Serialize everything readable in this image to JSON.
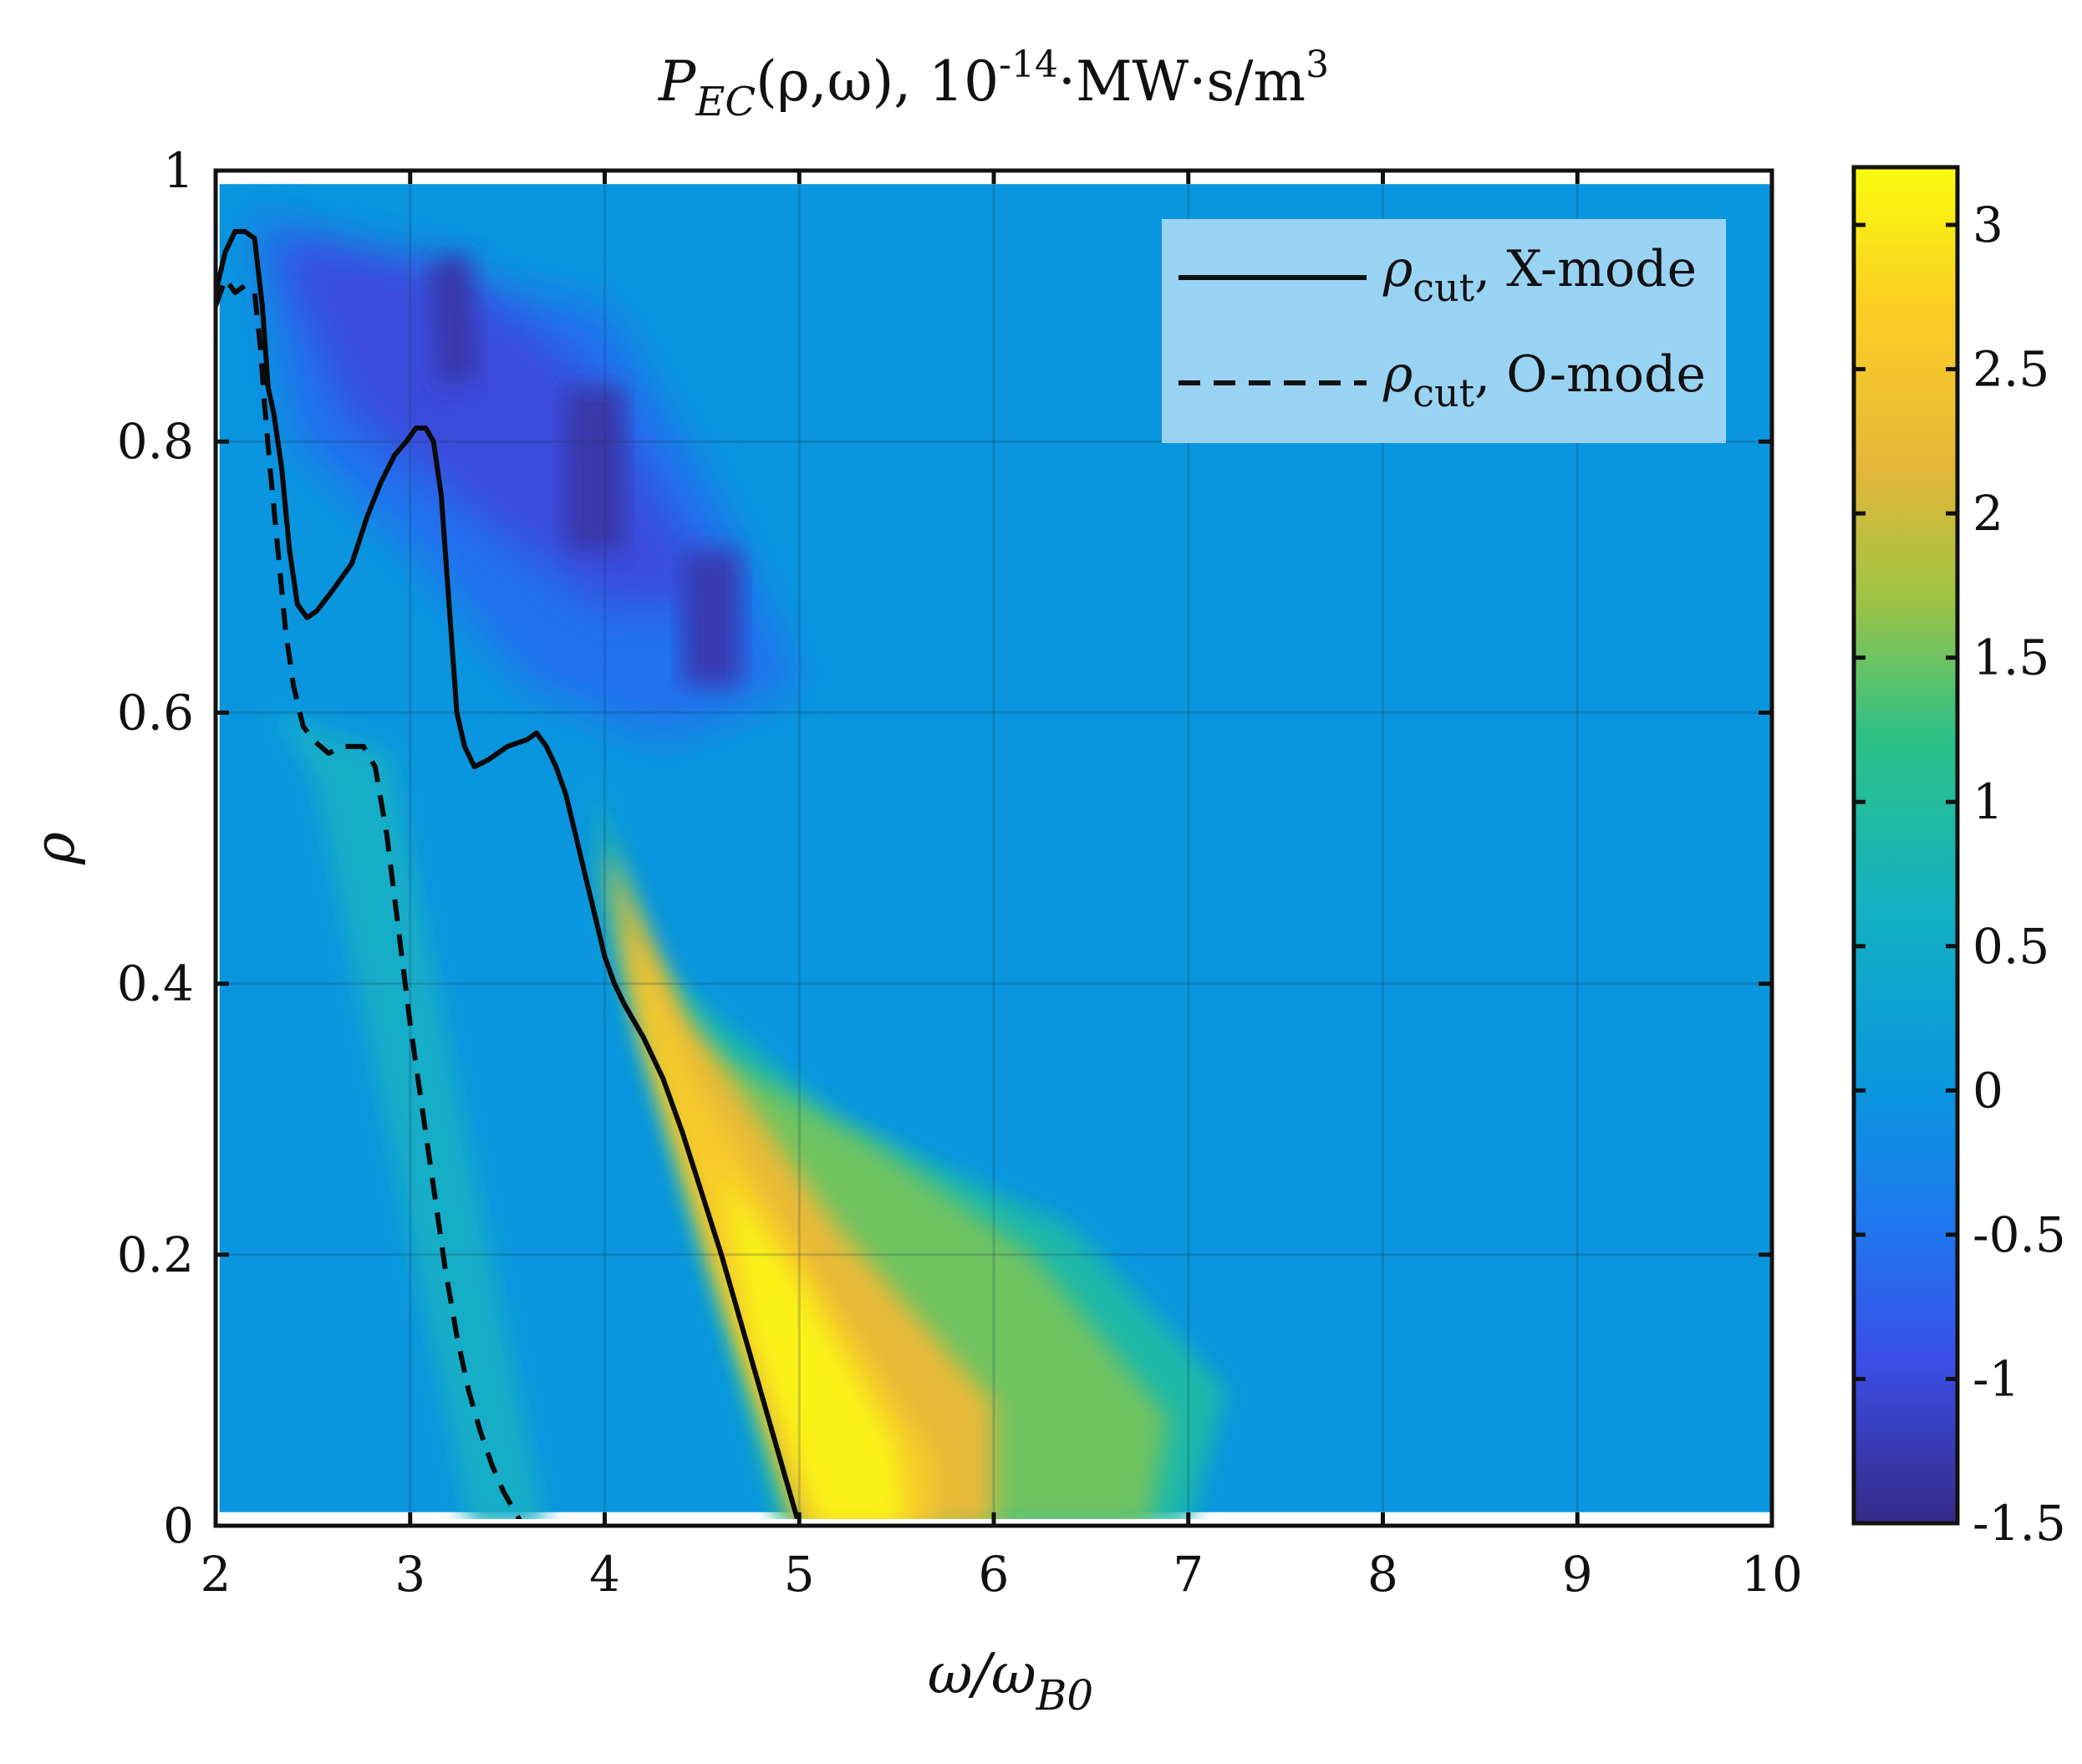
{
  "chart_data": {
    "type": "heatmap",
    "title": {
      "lhs_symbol": "P",
      "lhs_subscript": "EC",
      "lhs_args": "(ρ,ω), ",
      "scale_base": "10",
      "scale_exponent": "-14",
      "units": "·MW·s/m",
      "units_exponent": "3"
    },
    "xlabel": {
      "symbol": "ω/ω",
      "subscript": "B0"
    },
    "ylabel": "ρ",
    "xlim": [
      2,
      10
    ],
    "ylim": [
      0,
      1
    ],
    "x_ticks": [
      2,
      3,
      4,
      5,
      6,
      7,
      8,
      9,
      10
    ],
    "y_ticks": [
      0,
      0.2,
      0.4,
      0.6,
      0.8,
      1
    ],
    "x_tick_labels": [
      "2",
      "3",
      "4",
      "5",
      "6",
      "7",
      "8",
      "9",
      "10"
    ],
    "y_tick_labels": [
      "0",
      "0.2",
      "0.4",
      "0.6",
      "0.8",
      "1"
    ],
    "grid": true,
    "colorbar": {
      "range": [
        -1.5,
        3.2
      ],
      "ticks": [
        -1.5,
        -1,
        -0.5,
        0,
        0.5,
        1,
        1.5,
        2,
        2.5,
        3
      ],
      "tick_labels": [
        "-1.5",
        "-1",
        "-0.5",
        "0",
        "0.5",
        "1",
        "1.5",
        "2",
        "2.5",
        "3"
      ],
      "colormap": "parula"
    },
    "features": {
      "background_value": 0,
      "positive_band": {
        "description_value_peak": 3.1,
        "peak_x": 5.3,
        "peak_y": 0.05
      },
      "negative_region_peak": -1.3
    },
    "series": [
      {
        "name": "ρcut, X-mode",
        "style": "solid",
        "x": [
          2.0,
          2.05,
          2.1,
          2.15,
          2.2,
          2.24,
          2.27,
          2.3,
          2.34,
          2.38,
          2.42,
          2.47,
          2.52,
          2.6,
          2.7,
          2.78,
          2.85,
          2.92,
          2.98,
          3.03,
          3.08,
          3.12,
          3.16,
          3.2,
          3.24,
          3.28,
          3.33,
          3.4,
          3.5,
          3.6,
          3.65,
          3.7,
          3.75,
          3.8,
          3.85,
          3.9,
          3.95,
          4.0,
          4.05,
          4.1,
          4.2,
          4.3,
          4.4,
          4.5,
          4.6,
          4.7,
          4.8,
          4.9,
          5.0
        ],
        "y": [
          0.91,
          0.94,
          0.955,
          0.955,
          0.95,
          0.9,
          0.84,
          0.82,
          0.78,
          0.72,
          0.68,
          0.67,
          0.675,
          0.69,
          0.71,
          0.745,
          0.77,
          0.79,
          0.8,
          0.81,
          0.81,
          0.8,
          0.76,
          0.68,
          0.6,
          0.575,
          0.56,
          0.565,
          0.575,
          0.58,
          0.585,
          0.575,
          0.56,
          0.54,
          0.51,
          0.48,
          0.45,
          0.42,
          0.4,
          0.385,
          0.36,
          0.33,
          0.29,
          0.245,
          0.2,
          0.15,
          0.1,
          0.05,
          0.0
        ]
      },
      {
        "name": "ρcut, O-mode",
        "style": "dashed",
        "x": [
          2.0,
          2.05,
          2.1,
          2.15,
          2.2,
          2.23,
          2.25,
          2.28,
          2.32,
          2.36,
          2.4,
          2.45,
          2.5,
          2.58,
          2.66,
          2.72,
          2.76,
          2.82,
          2.88,
          2.94,
          3.0,
          3.06,
          3.12,
          3.18,
          3.24,
          3.3,
          3.36,
          3.42,
          3.48,
          3.54,
          3.58
        ],
        "y": [
          0.9,
          0.92,
          0.91,
          0.915,
          0.91,
          0.87,
          0.83,
          0.78,
          0.72,
          0.66,
          0.62,
          0.59,
          0.58,
          0.57,
          0.575,
          0.575,
          0.575,
          0.56,
          0.51,
          0.44,
          0.37,
          0.31,
          0.25,
          0.19,
          0.14,
          0.1,
          0.07,
          0.045,
          0.025,
          0.01,
          0.0
        ]
      }
    ],
    "legend": {
      "location": "top-right",
      "entries": [
        {
          "symbol": "ρ",
          "subscript": "cut",
          "suffix": ", X-mode"
        },
        {
          "symbol": "ρ",
          "subscript": "cut",
          "suffix": ", O-mode"
        }
      ]
    }
  }
}
